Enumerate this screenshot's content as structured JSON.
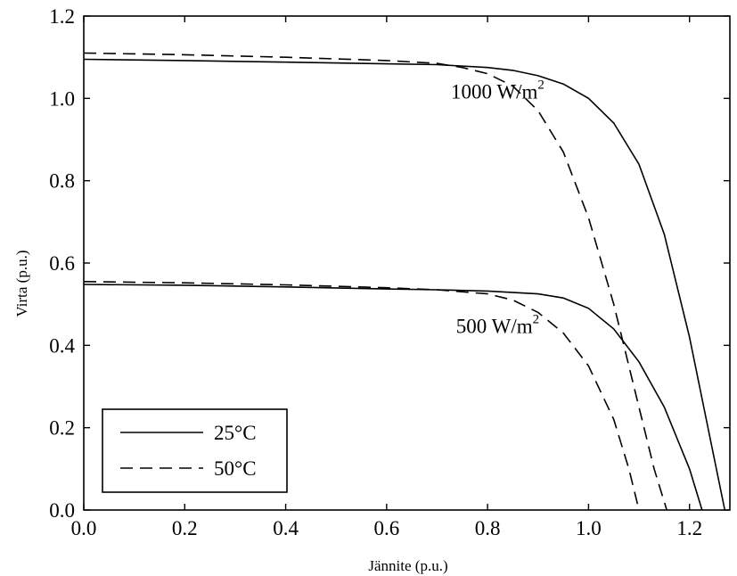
{
  "chart_data": {
    "type": "line",
    "xlabel": "Jännite (p.u.)",
    "ylabel": "Virta (p.u.)",
    "xlim": [
      0.0,
      1.28
    ],
    "ylim": [
      0.0,
      1.2
    ],
    "x_ticks": [
      "0.0",
      "0.2",
      "0.4",
      "0.6",
      "0.8",
      "1.0",
      "1.2"
    ],
    "y_ticks": [
      "0.0",
      "0.2",
      "0.4",
      "0.6",
      "0.8",
      "1.0",
      "1.2"
    ],
    "grid": false,
    "legend_position": "bottom-left",
    "legend": [
      {
        "label": "25°C",
        "style": "solid"
      },
      {
        "label": "50°C",
        "style": "dashed"
      }
    ],
    "annotations": [
      {
        "text": "1000 W/m",
        "superscript": "2",
        "x": 0.82,
        "y": 1.0
      },
      {
        "text": "500 W/m",
        "superscript": "2",
        "x": 0.82,
        "y": 0.43
      }
    ],
    "series": [
      {
        "irradiance": "1000 W/m2",
        "temperature": "25°C",
        "style": "solid",
        "points": [
          [
            0.0,
            1.095
          ],
          [
            0.2,
            1.092
          ],
          [
            0.4,
            1.088
          ],
          [
            0.6,
            1.084
          ],
          [
            0.7,
            1.082
          ],
          [
            0.8,
            1.075
          ],
          [
            0.85,
            1.068
          ],
          [
            0.9,
            1.055
          ],
          [
            0.95,
            1.035
          ],
          [
            1.0,
            1.0
          ],
          [
            1.05,
            0.94
          ],
          [
            1.1,
            0.84
          ],
          [
            1.15,
            0.67
          ],
          [
            1.2,
            0.42
          ],
          [
            1.24,
            0.18
          ],
          [
            1.27,
            0.0
          ]
        ]
      },
      {
        "irradiance": "1000 W/m2",
        "temperature": "50°C",
        "style": "dashed",
        "points": [
          [
            0.0,
            1.11
          ],
          [
            0.2,
            1.106
          ],
          [
            0.4,
            1.1
          ],
          [
            0.6,
            1.092
          ],
          [
            0.7,
            1.085
          ],
          [
            0.75,
            1.075
          ],
          [
            0.8,
            1.06
          ],
          [
            0.85,
            1.03
          ],
          [
            0.9,
            0.97
          ],
          [
            0.95,
            0.87
          ],
          [
            1.0,
            0.71
          ],
          [
            1.05,
            0.5
          ],
          [
            1.1,
            0.25
          ],
          [
            1.13,
            0.1
          ],
          [
            1.155,
            0.0
          ]
        ]
      },
      {
        "irradiance": "500 W/m2",
        "temperature": "25°C",
        "style": "solid",
        "points": [
          [
            0.0,
            0.548
          ],
          [
            0.2,
            0.546
          ],
          [
            0.4,
            0.542
          ],
          [
            0.6,
            0.537
          ],
          [
            0.7,
            0.535
          ],
          [
            0.8,
            0.532
          ],
          [
            0.9,
            0.525
          ],
          [
            0.95,
            0.515
          ],
          [
            1.0,
            0.49
          ],
          [
            1.05,
            0.44
          ],
          [
            1.1,
            0.36
          ],
          [
            1.15,
            0.25
          ],
          [
            1.2,
            0.1
          ],
          [
            1.225,
            0.0
          ]
        ]
      },
      {
        "irradiance": "500 W/m2",
        "temperature": "50°C",
        "style": "dashed",
        "points": [
          [
            0.0,
            0.555
          ],
          [
            0.2,
            0.552
          ],
          [
            0.4,
            0.547
          ],
          [
            0.6,
            0.54
          ],
          [
            0.7,
            0.535
          ],
          [
            0.8,
            0.525
          ],
          [
            0.85,
            0.51
          ],
          [
            0.9,
            0.48
          ],
          [
            0.95,
            0.43
          ],
          [
            1.0,
            0.35
          ],
          [
            1.05,
            0.22
          ],
          [
            1.08,
            0.1
          ],
          [
            1.1,
            0.0
          ]
        ]
      }
    ]
  }
}
